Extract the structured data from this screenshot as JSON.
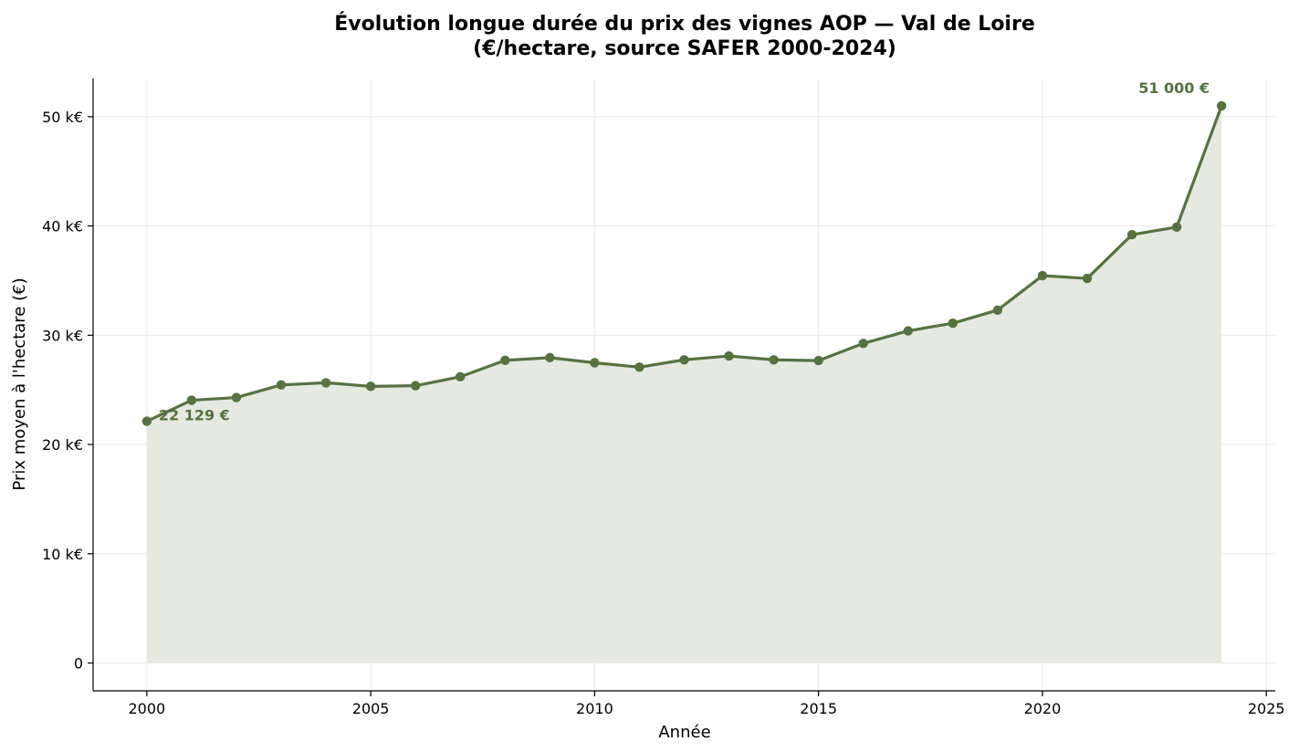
{
  "chart_data": {
    "type": "area",
    "title_line1": "Évolution longue durée du prix des vignes AOP — Val de Loire",
    "title_line2": "(€/hectare, source SAFER 2000-2024)",
    "xlabel": "Année",
    "ylabel": "Prix moyen à l'hectare (€)",
    "x": [
      2000,
      2001,
      2002,
      2003,
      2004,
      2005,
      2006,
      2007,
      2008,
      2009,
      2010,
      2011,
      2012,
      2013,
      2014,
      2015,
      2016,
      2017,
      2018,
      2019,
      2020,
      2021,
      2022,
      2023,
      2024
    ],
    "values": [
      22129,
      24050,
      24300,
      25450,
      25650,
      25320,
      25380,
      26200,
      27700,
      27950,
      27480,
      27080,
      27750,
      28100,
      27750,
      27680,
      29250,
      30400,
      31100,
      32300,
      35450,
      35200,
      39200,
      39900,
      51000
    ],
    "xlim": [
      1998.8,
      2025.2
    ],
    "ylim": [
      -2550,
      53500
    ],
    "x_ticks": [
      2000,
      2005,
      2010,
      2015,
      2020,
      2025
    ],
    "x_tick_labels": [
      "2000",
      "2005",
      "2010",
      "2015",
      "2020",
      "2025"
    ],
    "y_ticks": [
      0,
      10000,
      20000,
      30000,
      40000,
      50000
    ],
    "y_tick_labels": [
      "0",
      "10 k€",
      "20 k€",
      "30 k€",
      "40 k€",
      "50 k€"
    ],
    "grid": true,
    "annotations": [
      {
        "text": "22 129 €",
        "x": 2000,
        "y": 22129
      },
      {
        "text": "51 000 €",
        "x": 2024,
        "y": 51000
      }
    ],
    "colors": {
      "line": "#56733f",
      "fill": "#e6e9e0",
      "grid": "#ebebeb",
      "annotation": "#56733f"
    }
  }
}
